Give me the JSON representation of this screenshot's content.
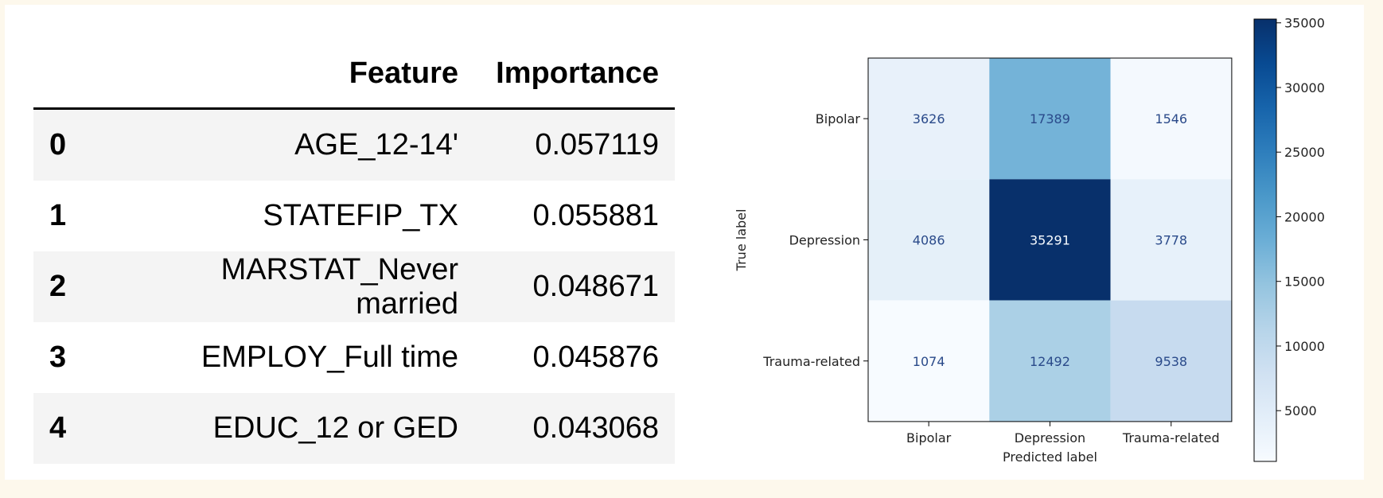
{
  "table": {
    "headers": [
      "",
      "Feature",
      "Importance"
    ],
    "rows": [
      {
        "index": "0",
        "feature": "AGE_12-14'",
        "importance": "0.057119"
      },
      {
        "index": "1",
        "feature": "STATEFIP_TX",
        "importance": "0.055881"
      },
      {
        "index": "2",
        "feature": "MARSTAT_Never married",
        "importance": "0.048671"
      },
      {
        "index": "3",
        "feature": "EMPLOY_Full time",
        "importance": "0.045876"
      },
      {
        "index": "4",
        "feature": "EDUC_12 or GED",
        "importance": "0.043068"
      }
    ]
  },
  "chart_data": {
    "type": "heatmap",
    "title": "",
    "xlabel": "Predicted label",
    "ylabel": "True label",
    "x_categories": [
      "Bipolar",
      "Depression",
      "Trauma-related"
    ],
    "y_categories": [
      "Bipolar",
      "Depression",
      "Trauma-related"
    ],
    "values": [
      [
        3626,
        17389,
        1546
      ],
      [
        4086,
        35291,
        3778
      ],
      [
        1074,
        12492,
        9538
      ]
    ],
    "colormap": "Blues",
    "colorbar": {
      "range": [
        1074,
        35291
      ],
      "ticks": [
        5000,
        10000,
        15000,
        20000,
        25000,
        30000,
        35000
      ],
      "tick_labels": [
        "5000",
        "10000",
        "15000",
        "20000",
        "25000",
        "30000",
        "35000"
      ]
    },
    "cell_text_colors": {
      "light_bg": "#2a4a8a",
      "dark_bg": "#f7fbff"
    }
  }
}
